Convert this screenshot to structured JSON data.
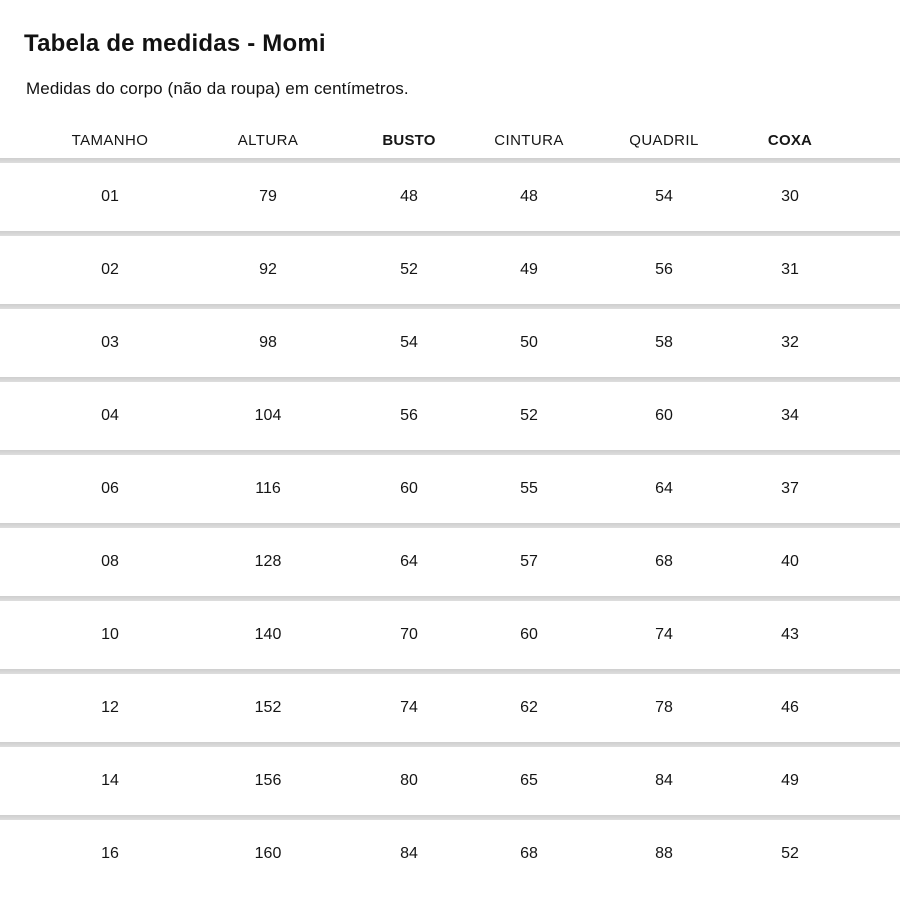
{
  "page": {
    "title": "Tabela de medidas - Momi",
    "subtitle": "Medidas do corpo (não da roupa) em centímetros."
  },
  "table": {
    "columns": [
      {
        "label": "TAMANHO",
        "bold": false
      },
      {
        "label": "ALTURA",
        "bold": false
      },
      {
        "label": "BUSTO",
        "bold": true
      },
      {
        "label": "CINTURA",
        "bold": false
      },
      {
        "label": "QUADRIL",
        "bold": false
      },
      {
        "label": "COXA",
        "bold": true
      }
    ],
    "rows": [
      [
        "01",
        "79",
        "48",
        "48",
        "54",
        "30"
      ],
      [
        "02",
        "92",
        "52",
        "49",
        "56",
        "31"
      ],
      [
        "03",
        "98",
        "54",
        "50",
        "58",
        "32"
      ],
      [
        "04",
        "104",
        "56",
        "52",
        "60",
        "34"
      ],
      [
        "06",
        "116",
        "60",
        "55",
        "64",
        "37"
      ],
      [
        "08",
        "128",
        "64",
        "57",
        "68",
        "40"
      ],
      [
        "10",
        "140",
        "70",
        "60",
        "74",
        "43"
      ],
      [
        "12",
        "152",
        "74",
        "62",
        "78",
        "46"
      ],
      [
        "14",
        "156",
        "80",
        "65",
        "84",
        "49"
      ],
      [
        "16",
        "160",
        "84",
        "68",
        "88",
        "52"
      ]
    ]
  },
  "colors": {
    "background": "#ffffff",
    "text": "#121212",
    "divider": "#d8d8d8"
  }
}
